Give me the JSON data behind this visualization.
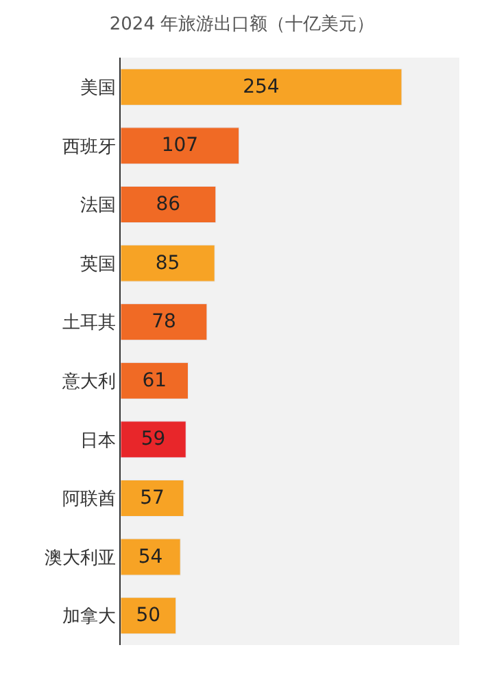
{
  "chart_data": {
    "type": "bar",
    "orientation": "horizontal",
    "title": "2024 年旅游出口额（十亿美元）",
    "categories": [
      "美国",
      "西班牙",
      "法国",
      "英国",
      "土耳其",
      "意大利",
      "日本",
      "阿联酋",
      "澳大利亚",
      "加拿大"
    ],
    "values": [
      254,
      107,
      86,
      85,
      78,
      61,
      59,
      57,
      54,
      50
    ],
    "colors": [
      "#f7a325",
      "#f06a25",
      "#f06a25",
      "#f7a325",
      "#f06a25",
      "#f06a25",
      "#e8262a",
      "#f7a325",
      "#f7a325",
      "#f7a325"
    ],
    "xlim": [
      0,
      306
    ],
    "data_labels": true,
    "tick_labels": "y",
    "grid": false
  }
}
